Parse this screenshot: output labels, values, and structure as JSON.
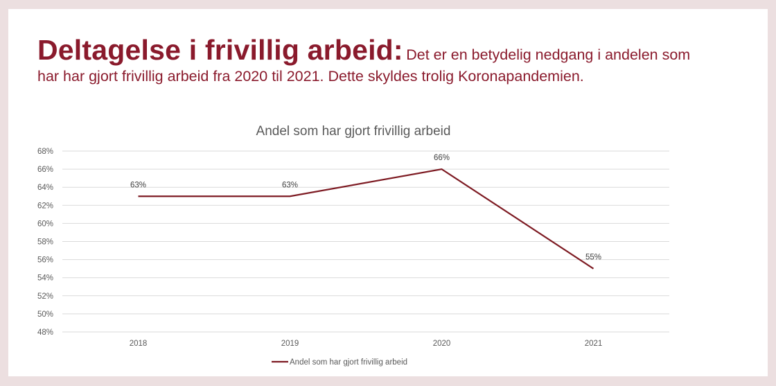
{
  "heading": {
    "strong": "Deltagelse i frivillig arbeid:",
    "rest": "Det er en betydelig nedgang i andelen som har har gjort frivillig arbeid fra 2020 til 2021. Dette skyldes trolig Koronapandemien."
  },
  "colors": {
    "accent": "#8a1a2c",
    "line": "#7d1a22",
    "grid": "#d9d9d9",
    "frame": "#ecdfe0"
  },
  "chart_data": {
    "type": "line",
    "title": "Andel som har gjort frivillig arbeid",
    "categories": [
      "2018",
      "2019",
      "2020",
      "2021"
    ],
    "series": [
      {
        "name": "Andel som har gjort frivillig arbeid",
        "values": [
          63,
          63,
          66,
          55
        ],
        "labels": [
          "63%",
          "63%",
          "66%",
          "55%"
        ]
      }
    ],
    "ylim": [
      48,
      68
    ],
    "yticks": [
      "48%",
      "50%",
      "52%",
      "54%",
      "56%",
      "58%",
      "60%",
      "62%",
      "64%",
      "66%",
      "68%"
    ],
    "grid": true,
    "legend": "bottom"
  }
}
